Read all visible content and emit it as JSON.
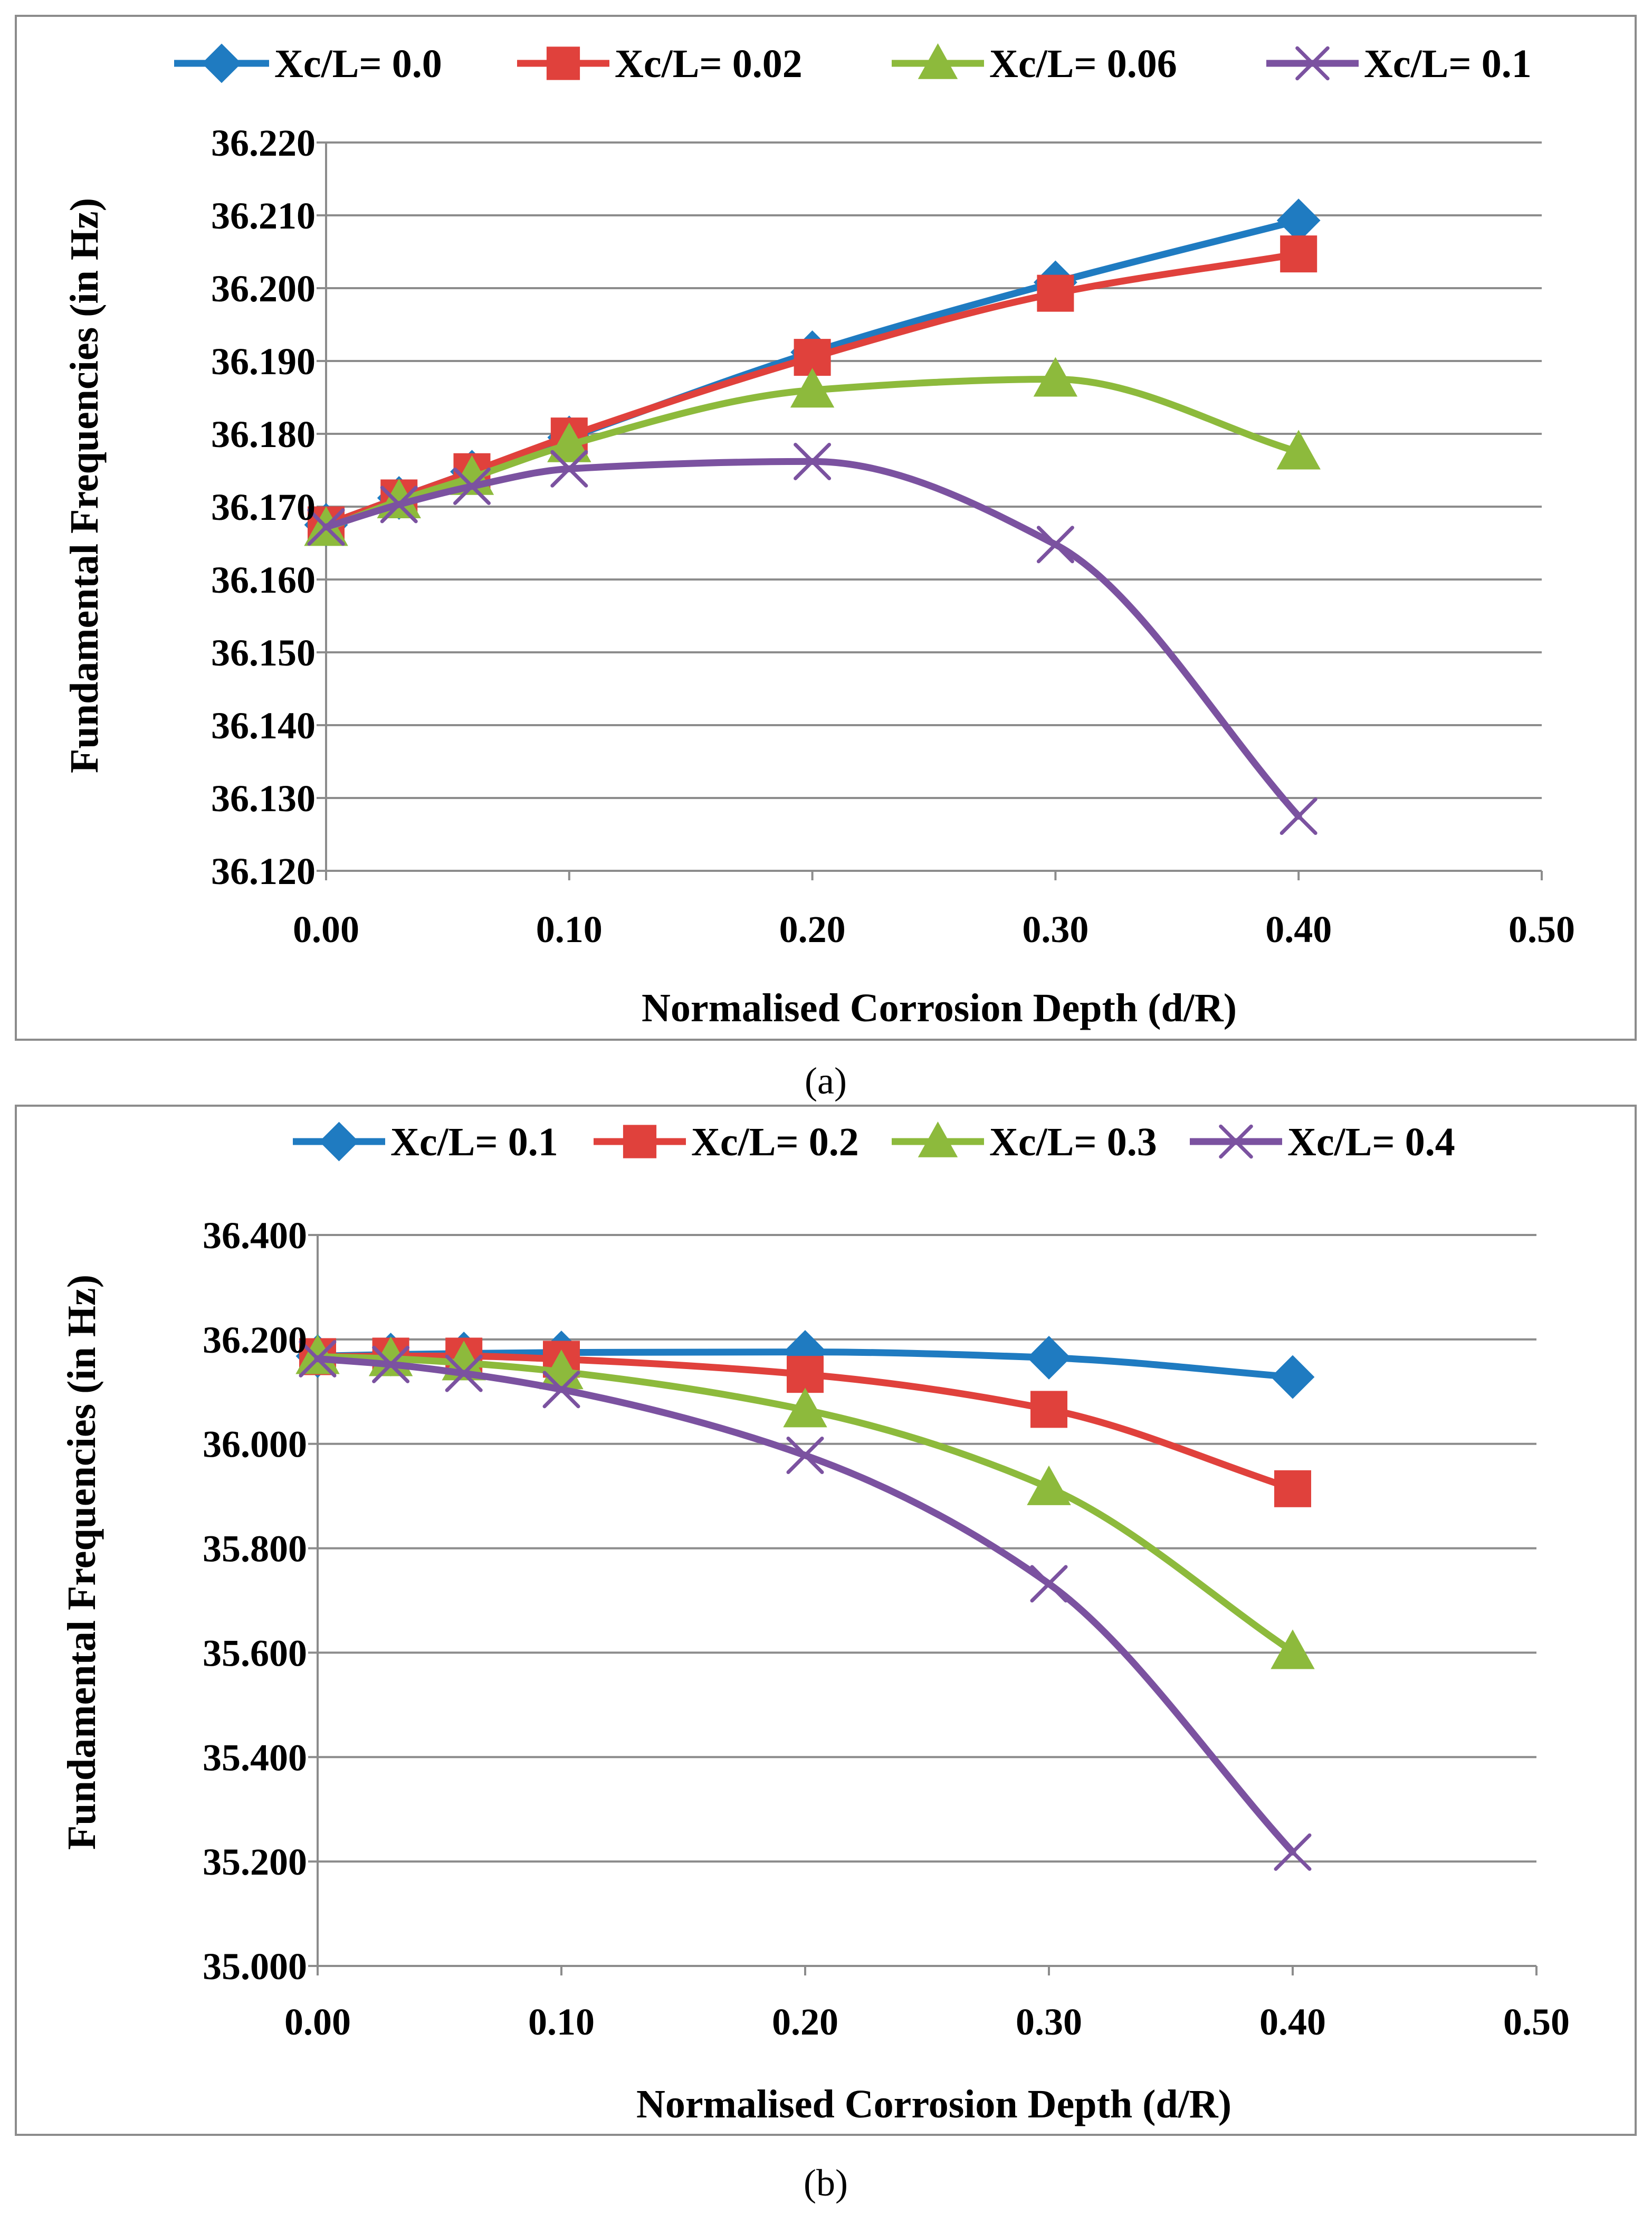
{
  "chart_data": [
    {
      "id": "a",
      "type": "line",
      "caption": "(a)",
      "title": "",
      "xlabel": "Normalised Corrosion Depth (d/R)",
      "ylabel": "Fundamental Frequencies (in Hz)",
      "xlim": [
        0.0,
        0.5
      ],
      "ylim": [
        36.12,
        36.22
      ],
      "xticks": [
        0.0,
        0.1,
        0.2,
        0.3,
        0.4,
        0.5
      ],
      "xtick_labels": [
        "0.00",
        "0.10",
        "0.20",
        "0.30",
        "0.40",
        "0.50"
      ],
      "yticks": [
        36.12,
        36.13,
        36.14,
        36.15,
        36.16,
        36.17,
        36.18,
        36.19,
        36.2,
        36.21,
        36.22
      ],
      "ytick_labels": [
        "36.120",
        "36.130",
        "36.140",
        "36.150",
        "36.160",
        "36.170",
        "36.180",
        "36.190",
        "36.200",
        "36.210",
        "36.220"
      ],
      "grid": "horizontal",
      "legend_position": "top",
      "x": [
        0.0,
        0.03,
        0.06,
        0.1,
        0.2,
        0.3,
        0.4
      ],
      "series": [
        {
          "name": "Xc/L= 0.0",
          "color": "#1F7BC1",
          "marker": "diamond",
          "values": [
            36.1675,
            36.1712,
            36.1748,
            36.1795,
            36.1912,
            36.2008,
            36.2093
          ]
        },
        {
          "name": "Xc/L= 0.02",
          "color": "#E0413C",
          "marker": "square",
          "values": [
            36.1675,
            36.1712,
            36.1748,
            36.1797,
            36.1905,
            36.1993,
            36.2047
          ]
        },
        {
          "name": "Xc/L= 0.06",
          "color": "#8DBA3C",
          "marker": "triangle",
          "values": [
            36.167,
            36.1708,
            36.174,
            36.1785,
            36.186,
            36.1875,
            36.1775
          ]
        },
        {
          "name": "Xc/L= 0.1",
          "color": "#7B52A0",
          "marker": "x",
          "values": [
            36.1672,
            36.1703,
            36.1728,
            36.1752,
            36.1762,
            36.1648,
            36.1275
          ]
        }
      ]
    },
    {
      "id": "b",
      "type": "line",
      "caption": "(b)",
      "title": "",
      "xlabel": "Normalised Corrosion Depth (d/R)",
      "ylabel": "Fundamental Frequencies (in Hz)",
      "xlim": [
        0.0,
        0.5
      ],
      "ylim": [
        35.0,
        36.4
      ],
      "xticks": [
        0.0,
        0.1,
        0.2,
        0.3,
        0.4,
        0.5
      ],
      "xtick_labels": [
        "0.00",
        "0.10",
        "0.20",
        "0.30",
        "0.40",
        "0.50"
      ],
      "yticks": [
        35.0,
        35.2,
        35.4,
        35.6,
        35.8,
        36.0,
        36.2,
        36.4
      ],
      "ytick_labels": [
        "35.000",
        "35.200",
        "35.400",
        "35.600",
        "35.800",
        "36.000",
        "36.200",
        "36.400"
      ],
      "grid": "horizontal",
      "legend_position": "top",
      "x": [
        0.0,
        0.03,
        0.06,
        0.1,
        0.2,
        0.3,
        0.4
      ],
      "series": [
        {
          "name": "Xc/L= 0.1",
          "color": "#1F7BC1",
          "marker": "diamond",
          "values": [
            36.168,
            36.171,
            36.173,
            36.175,
            36.176,
            36.165,
            36.128
          ]
        },
        {
          "name": "Xc/L= 0.2",
          "color": "#E0413C",
          "marker": "square",
          "values": [
            36.167,
            36.168,
            36.168,
            36.162,
            36.133,
            36.066,
            35.914
          ]
        },
        {
          "name": "Xc/L= 0.3",
          "color": "#8DBA3C",
          "marker": "triangle",
          "values": [
            36.167,
            36.163,
            36.155,
            36.138,
            36.065,
            35.916,
            35.602
          ]
        },
        {
          "name": "Xc/L= 0.4",
          "color": "#7B52A0",
          "marker": "x",
          "values": [
            36.163,
            36.152,
            36.135,
            36.104,
            35.978,
            35.732,
            35.218
          ]
        }
      ]
    }
  ]
}
